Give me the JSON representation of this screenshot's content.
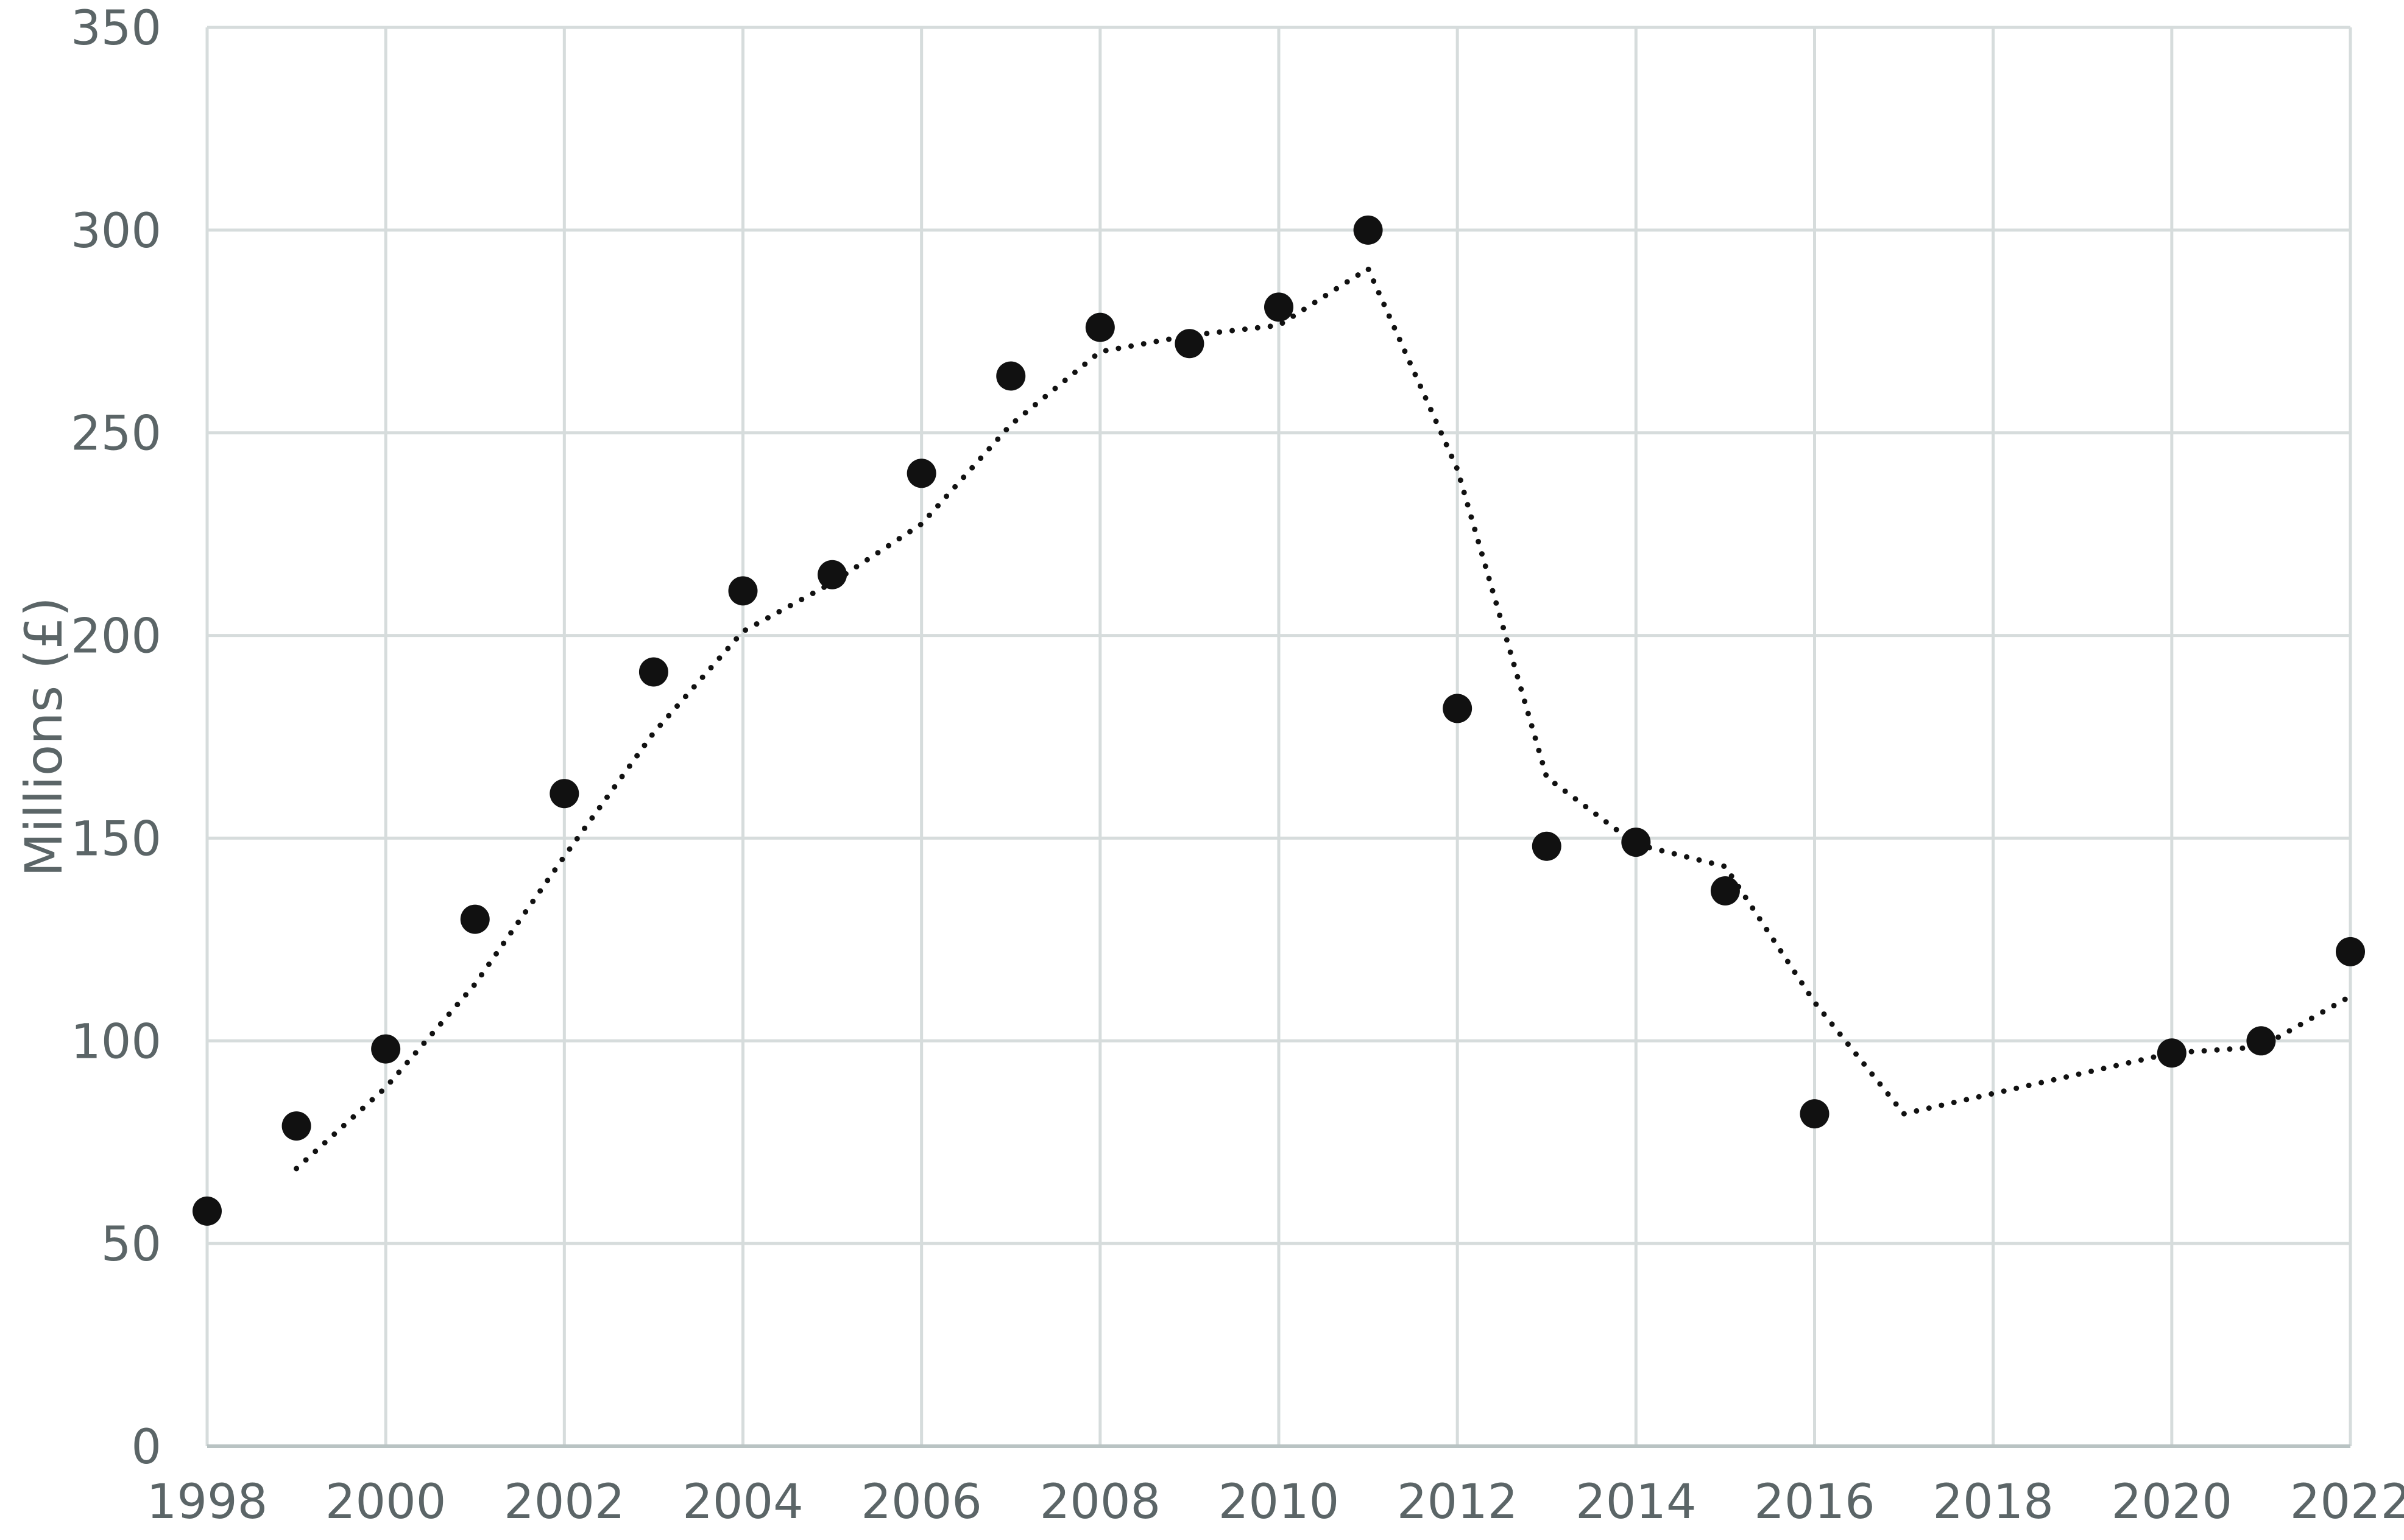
{
  "chart_data": {
    "type": "scatter",
    "title": "",
    "xlabel": "",
    "ylabel": "Millions (£)",
    "xlim": [
      1998,
      2022
    ],
    "ylim": [
      0,
      350
    ],
    "x_ticks": [
      1998,
      2000,
      2002,
      2004,
      2006,
      2008,
      2010,
      2012,
      2014,
      2016,
      2018,
      2020,
      2022
    ],
    "y_ticks": [
      0,
      50,
      100,
      150,
      200,
      250,
      300,
      350
    ],
    "grid": true,
    "legend": "none",
    "series": [
      {
        "x": [
          1998,
          1999,
          2000,
          2001,
          2002,
          2003,
          2004,
          2005,
          2006,
          2007,
          2008,
          2009,
          2010,
          2011,
          2012,
          2013,
          2014,
          2015,
          2016,
          2020,
          2021,
          2022
        ],
        "y": [
          58,
          79,
          98,
          130,
          161,
          191,
          211,
          215,
          240,
          264,
          276,
          272,
          281,
          300,
          182,
          148,
          149,
          137,
          82,
          97,
          100,
          122
        ],
        "color": "#111111"
      }
    ],
    "trendline": {
      "style": "dotted",
      "kind": "moving-average",
      "color": "#111111",
      "x": [
        1999,
        2000,
        2001,
        2002,
        2003,
        2004,
        2005,
        2006,
        2007,
        2008,
        2009,
        2010,
        2011,
        2012,
        2013,
        2014,
        2015,
        2016,
        2017,
        2020,
        2021,
        2022
      ],
      "y": [
        68.5,
        88.5,
        114,
        145.5,
        176,
        201,
        213,
        227.5,
        252,
        270,
        274,
        276.5,
        290.5,
        241,
        165,
        148.5,
        143,
        109.5,
        82,
        97,
        98.5,
        111
      ]
    }
  }
}
